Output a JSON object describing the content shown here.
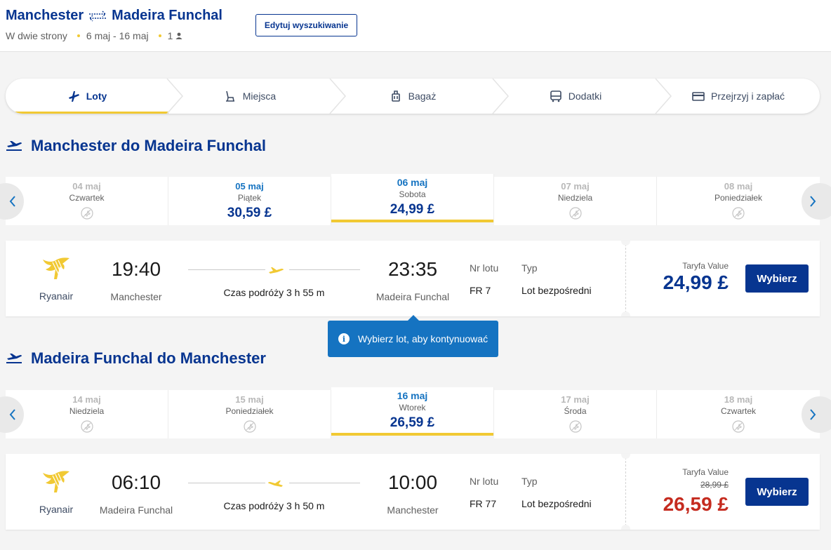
{
  "header": {
    "origin": "Manchester",
    "destination": "Madeira Funchal",
    "trip_type": "W dwie strony",
    "dates": "6 maj - 16 maj",
    "passengers": "1",
    "edit_button": "Edytuj wyszukiwanie",
    "icons": [
      "round-trip-icon",
      "person-icon"
    ]
  },
  "steps": [
    {
      "label": "Loty",
      "icon": "plane-icon",
      "active": true
    },
    {
      "label": "Miejsca",
      "icon": "seat-icon",
      "active": false
    },
    {
      "label": "Bagaż",
      "icon": "luggage-icon",
      "active": false
    },
    {
      "label": "Dodatki",
      "icon": "bus-icon",
      "active": false
    },
    {
      "label": "Przejrzyj i zapłać",
      "icon": "card-icon",
      "active": false
    }
  ],
  "outbound": {
    "title": "Manchester do Madeira Funchal",
    "dates": [
      {
        "date": "04 maj",
        "weekday": "Czwartek",
        "price": null
      },
      {
        "date": "05 maj",
        "weekday": "Piątek",
        "price": "30,59 £"
      },
      {
        "date": "06 maj",
        "weekday": "Sobota",
        "price": "24,99 £",
        "selected": true
      },
      {
        "date": "07 maj",
        "weekday": "Niedziela",
        "price": null
      },
      {
        "date": "08 maj",
        "weekday": "Poniedziałek",
        "price": null
      }
    ],
    "flight": {
      "airline": "Ryanair",
      "dep_time": "19:40",
      "dep_city": "Manchester",
      "duration": "Czas podróży 3 h 55 m",
      "arr_time": "23:35",
      "arr_city": "Madeira Funchal",
      "flight_no_label": "Nr lotu",
      "flight_no": "FR 7",
      "type_label": "Typ",
      "type": "Lot bezpośredni",
      "fare_name": "Taryfa Value",
      "fare_old": "",
      "price": "24,99 £",
      "select": "Wybierz"
    }
  },
  "tooltip": "Wybierz lot, aby kontynuować",
  "inbound": {
    "title": "Madeira Funchal do Manchester",
    "dates": [
      {
        "date": "14 maj",
        "weekday": "Niedziela",
        "price": null
      },
      {
        "date": "15 maj",
        "weekday": "Poniedziałek",
        "price": null
      },
      {
        "date": "16 maj",
        "weekday": "Wtorek",
        "price": "26,59 £",
        "selected": true
      },
      {
        "date": "17 maj",
        "weekday": "Środa",
        "price": null
      },
      {
        "date": "18 maj",
        "weekday": "Czwartek",
        "price": null
      }
    ],
    "flight": {
      "airline": "Ryanair",
      "dep_time": "06:10",
      "dep_city": "Madeira Funchal",
      "duration": "Czas podróży 3 h 50 m",
      "arr_time": "10:00",
      "arr_city": "Manchester",
      "flight_no_label": "Nr lotu",
      "flight_no": "FR 77",
      "type_label": "Typ",
      "type": "Lot bezpośredni",
      "fare_name": "Taryfa Value",
      "fare_old": "28,99 £",
      "price": "26,59 £",
      "select": "Wybierz"
    }
  },
  "colors": {
    "brand": "#073590",
    "accent": "#f1c933",
    "link": "#1573c1",
    "discount": "#c52b1f"
  }
}
